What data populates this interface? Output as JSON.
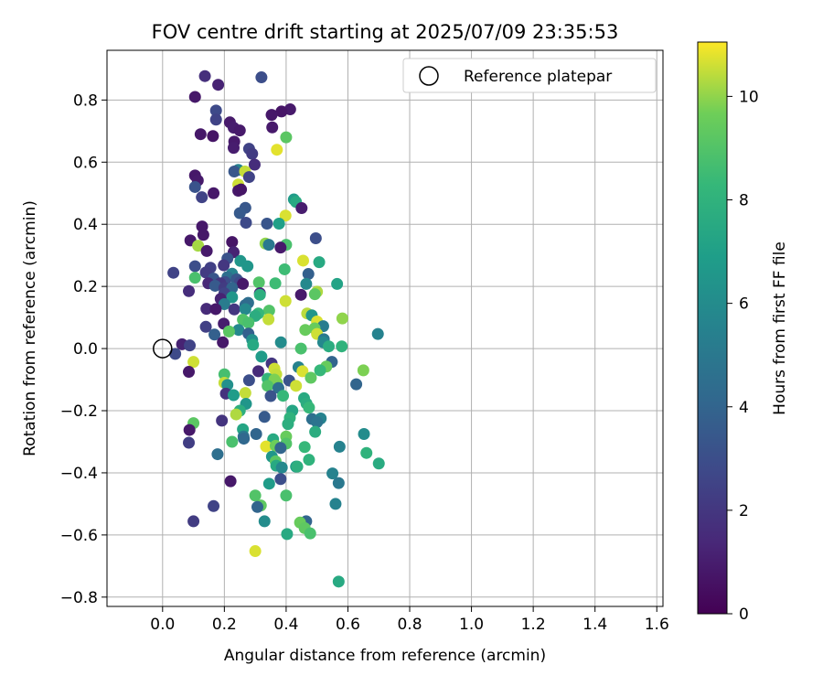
{
  "chart_data": {
    "type": "scatter",
    "title": "FOV centre drift starting at 2025/07/09 23:35:53",
    "xlabel": "Angular distance from reference (arcmin)",
    "ylabel": "Rotation from reference (arcmin)",
    "xlim": [
      -0.18,
      1.62
    ],
    "ylim": [
      -0.83,
      0.96
    ],
    "xticks": [
      0.0,
      0.2,
      0.4,
      0.6,
      0.8,
      1.0,
      1.2,
      1.4,
      1.6
    ],
    "xtick_labels": [
      "0.0",
      "0.2",
      "0.4",
      "0.6",
      "0.8",
      "1.0",
      "1.2",
      "1.4",
      "1.6"
    ],
    "yticks": [
      -0.8,
      -0.6,
      -0.4,
      -0.2,
      0.0,
      0.2,
      0.4,
      0.6,
      0.8
    ],
    "ytick_labels": [
      "−0.8",
      "−0.6",
      "−0.4",
      "−0.2",
      "0.0",
      "0.2",
      "0.4",
      "0.6",
      "0.8"
    ],
    "grid": true,
    "legend": {
      "label": "Reference platepar",
      "placement": "top-right"
    },
    "reference_point": {
      "x": 0.0,
      "y": 0.0
    },
    "colorbar": {
      "label": "Hours from first FF file",
      "min": 0,
      "max": 11.05,
      "ticks": [
        0,
        2,
        4,
        6,
        8,
        10
      ],
      "tick_labels": [
        "0",
        "2",
        "4",
        "6",
        "8",
        "10"
      ],
      "colormap": "viridis"
    },
    "points": [
      {
        "x": 0.137,
        "y": 0.877,
        "t": 1.7
      },
      {
        "x": 0.32,
        "y": 0.873,
        "t": 3.0
      },
      {
        "x": 0.18,
        "y": 0.849,
        "t": 1.2
      },
      {
        "x": 0.105,
        "y": 0.81,
        "t": 0.8
      },
      {
        "x": 0.413,
        "y": 0.77,
        "t": 0.9
      },
      {
        "x": 0.385,
        "y": 0.763,
        "t": 0.7
      },
      {
        "x": 0.353,
        "y": 0.752,
        "t": 0.8
      },
      {
        "x": 0.173,
        "y": 0.766,
        "t": 2.8
      },
      {
        "x": 0.173,
        "y": 0.737,
        "t": 2.5
      },
      {
        "x": 0.218,
        "y": 0.728,
        "t": 0.9
      },
      {
        "x": 0.355,
        "y": 0.712,
        "t": 0.9
      },
      {
        "x": 0.23,
        "y": 0.711,
        "t": 1.0
      },
      {
        "x": 0.25,
        "y": 0.702,
        "t": 0.9
      },
      {
        "x": 0.123,
        "y": 0.69,
        "t": 0.8
      },
      {
        "x": 0.163,
        "y": 0.684,
        "t": 0.7
      },
      {
        "x": 0.4,
        "y": 0.68,
        "t": 9.2
      },
      {
        "x": 0.232,
        "y": 0.666,
        "t": 0.9
      },
      {
        "x": 0.23,
        "y": 0.646,
        "t": 1.0
      },
      {
        "x": 0.28,
        "y": 0.643,
        "t": 2.5
      },
      {
        "x": 0.29,
        "y": 0.627,
        "t": 2.2
      },
      {
        "x": 0.37,
        "y": 0.64,
        "t": 10.8
      },
      {
        "x": 0.298,
        "y": 0.592,
        "t": 1.6
      },
      {
        "x": 0.245,
        "y": 0.575,
        "t": 5.5
      },
      {
        "x": 0.232,
        "y": 0.57,
        "t": 3.4
      },
      {
        "x": 0.267,
        "y": 0.57,
        "t": 10.5
      },
      {
        "x": 0.105,
        "y": 0.557,
        "t": 0.8
      },
      {
        "x": 0.114,
        "y": 0.541,
        "t": 0.9
      },
      {
        "x": 0.28,
        "y": 0.552,
        "t": 2.5
      },
      {
        "x": 0.105,
        "y": 0.52,
        "t": 3.2
      },
      {
        "x": 0.245,
        "y": 0.528,
        "t": 10.6
      },
      {
        "x": 0.245,
        "y": 0.508,
        "t": 0.8
      },
      {
        "x": 0.165,
        "y": 0.5,
        "t": 0.8
      },
      {
        "x": 0.254,
        "y": 0.512,
        "t": 0.7
      },
      {
        "x": 0.127,
        "y": 0.487,
        "t": 2.5
      },
      {
        "x": 0.425,
        "y": 0.48,
        "t": 6.8
      },
      {
        "x": 0.432,
        "y": 0.472,
        "t": 7.5
      },
      {
        "x": 0.45,
        "y": 0.452,
        "t": 1.0
      },
      {
        "x": 0.268,
        "y": 0.453,
        "t": 3.4
      },
      {
        "x": 0.25,
        "y": 0.436,
        "t": 3.5
      },
      {
        "x": 0.398,
        "y": 0.428,
        "t": 10.7
      },
      {
        "x": 0.27,
        "y": 0.405,
        "t": 2.8
      },
      {
        "x": 0.338,
        "y": 0.402,
        "t": 3.3
      },
      {
        "x": 0.377,
        "y": 0.402,
        "t": 7.0
      },
      {
        "x": 0.128,
        "y": 0.393,
        "t": 0.8
      },
      {
        "x": 0.132,
        "y": 0.366,
        "t": 0.8
      },
      {
        "x": 0.496,
        "y": 0.355,
        "t": 3.0
      },
      {
        "x": 0.09,
        "y": 0.348,
        "t": 0.8
      },
      {
        "x": 0.225,
        "y": 0.343,
        "t": 0.7
      },
      {
        "x": 0.333,
        "y": 0.338,
        "t": 10.0
      },
      {
        "x": 0.4,
        "y": 0.334,
        "t": 8.8
      },
      {
        "x": 0.382,
        "y": 0.325,
        "t": 0.9
      },
      {
        "x": 0.344,
        "y": 0.334,
        "t": 5.0
      },
      {
        "x": 0.115,
        "y": 0.331,
        "t": 10.2
      },
      {
        "x": 0.143,
        "y": 0.314,
        "t": 0.9
      },
      {
        "x": 0.23,
        "y": 0.31,
        "t": 1.2
      },
      {
        "x": 0.455,
        "y": 0.283,
        "t": 10.7
      },
      {
        "x": 0.21,
        "y": 0.29,
        "t": 3.2
      },
      {
        "x": 0.252,
        "y": 0.282,
        "t": 6.5
      },
      {
        "x": 0.507,
        "y": 0.278,
        "t": 7.5
      },
      {
        "x": 0.198,
        "y": 0.268,
        "t": 2.0
      },
      {
        "x": 0.105,
        "y": 0.265,
        "t": 3.0
      },
      {
        "x": 0.395,
        "y": 0.255,
        "t": 8.5
      },
      {
        "x": 0.275,
        "y": 0.265,
        "t": 6.5
      },
      {
        "x": 0.155,
        "y": 0.26,
        "t": 2.4
      },
      {
        "x": 0.035,
        "y": 0.244,
        "t": 2.5
      },
      {
        "x": 0.14,
        "y": 0.245,
        "t": 2.2
      },
      {
        "x": 0.225,
        "y": 0.241,
        "t": 5.5
      },
      {
        "x": 0.472,
        "y": 0.24,
        "t": 3.8
      },
      {
        "x": 0.21,
        "y": 0.23,
        "t": 4.5
      },
      {
        "x": 0.165,
        "y": 0.225,
        "t": 3.3
      },
      {
        "x": 0.105,
        "y": 0.228,
        "t": 8.8
      },
      {
        "x": 0.24,
        "y": 0.223,
        "t": 3.4
      },
      {
        "x": 0.202,
        "y": 0.214,
        "t": 3.0
      },
      {
        "x": 0.25,
        "y": 0.213,
        "t": 2.8
      },
      {
        "x": 0.148,
        "y": 0.21,
        "t": 1.4
      },
      {
        "x": 0.187,
        "y": 0.21,
        "t": 2.0
      },
      {
        "x": 0.312,
        "y": 0.213,
        "t": 9.0
      },
      {
        "x": 0.365,
        "y": 0.21,
        "t": 8.5
      },
      {
        "x": 0.17,
        "y": 0.202,
        "t": 3.5
      },
      {
        "x": 0.26,
        "y": 0.208,
        "t": 0.8
      },
      {
        "x": 0.565,
        "y": 0.208,
        "t": 7.2
      },
      {
        "x": 0.465,
        "y": 0.208,
        "t": 5.8
      },
      {
        "x": 0.2,
        "y": 0.195,
        "t": 2.2
      },
      {
        "x": 0.225,
        "y": 0.195,
        "t": 4.0
      },
      {
        "x": 0.085,
        "y": 0.185,
        "t": 1.6
      },
      {
        "x": 0.5,
        "y": 0.183,
        "t": 10.3
      },
      {
        "x": 0.2,
        "y": 0.178,
        "t": 2.5
      },
      {
        "x": 0.315,
        "y": 0.178,
        "t": 1.5
      },
      {
        "x": 0.493,
        "y": 0.175,
        "t": 9.2
      },
      {
        "x": 0.315,
        "y": 0.173,
        "t": 7.8
      },
      {
        "x": 0.448,
        "y": 0.173,
        "t": 0.9
      },
      {
        "x": 0.225,
        "y": 0.165,
        "t": 6.5
      },
      {
        "x": 0.188,
        "y": 0.16,
        "t": 1.2
      },
      {
        "x": 0.398,
        "y": 0.153,
        "t": 10.6
      },
      {
        "x": 0.2,
        "y": 0.143,
        "t": 5.2
      },
      {
        "x": 0.277,
        "y": 0.147,
        "t": 4.5
      },
      {
        "x": 0.268,
        "y": 0.14,
        "t": 4.3
      },
      {
        "x": 0.142,
        "y": 0.128,
        "t": 1.5
      },
      {
        "x": 0.232,
        "y": 0.126,
        "t": 2.0
      },
      {
        "x": 0.268,
        "y": 0.127,
        "t": 5.8
      },
      {
        "x": 0.172,
        "y": 0.127,
        "t": 0.8
      },
      {
        "x": 0.345,
        "y": 0.122,
        "t": 9.0
      },
      {
        "x": 0.31,
        "y": 0.113,
        "t": 8.3
      },
      {
        "x": 0.468,
        "y": 0.113,
        "t": 10.4
      },
      {
        "x": 0.483,
        "y": 0.107,
        "t": 6.5
      },
      {
        "x": 0.3,
        "y": 0.105,
        "t": 7.7
      },
      {
        "x": 0.343,
        "y": 0.094,
        "t": 10.5
      },
      {
        "x": 0.5,
        "y": 0.087,
        "t": 10.7
      },
      {
        "x": 0.582,
        "y": 0.097,
        "t": 10.0
      },
      {
        "x": 0.26,
        "y": 0.093,
        "t": 9.0
      },
      {
        "x": 0.278,
        "y": 0.083,
        "t": 8.8
      },
      {
        "x": 0.198,
        "y": 0.08,
        "t": 1.0
      },
      {
        "x": 0.14,
        "y": 0.07,
        "t": 2.4
      },
      {
        "x": 0.52,
        "y": 0.072,
        "t": 5.2
      },
      {
        "x": 0.492,
        "y": 0.065,
        "t": 9.5
      },
      {
        "x": 0.246,
        "y": 0.06,
        "t": 5.8
      },
      {
        "x": 0.462,
        "y": 0.06,
        "t": 9.5
      },
      {
        "x": 0.215,
        "y": 0.055,
        "t": 9.2
      },
      {
        "x": 0.278,
        "y": 0.048,
        "t": 3.8
      },
      {
        "x": 0.5,
        "y": 0.047,
        "t": 10.6
      },
      {
        "x": 0.697,
        "y": 0.047,
        "t": 5.5
      },
      {
        "x": 0.168,
        "y": 0.045,
        "t": 3.8
      },
      {
        "x": 0.522,
        "y": 0.03,
        "t": 5.0
      },
      {
        "x": 0.29,
        "y": 0.028,
        "t": 6.2
      },
      {
        "x": 0.383,
        "y": 0.02,
        "t": 6.0
      },
      {
        "x": 0.195,
        "y": 0.02,
        "t": 0.8
      },
      {
        "x": 0.52,
        "y": 0.02,
        "t": 5.8
      },
      {
        "x": 0.063,
        "y": 0.014,
        "t": 1.2
      },
      {
        "x": 0.088,
        "y": 0.01,
        "t": 2.5
      },
      {
        "x": 0.293,
        "y": 0.012,
        "t": 7.5
      },
      {
        "x": 0.538,
        "y": 0.007,
        "t": 7.7
      },
      {
        "x": 0.58,
        "y": 0.007,
        "t": 8.0
      },
      {
        "x": 0.448,
        "y": 0.0,
        "t": 8.8
      },
      {
        "x": 0.041,
        "y": -0.017,
        "t": 2.8
      },
      {
        "x": 0.32,
        "y": -0.026,
        "t": 6.8
      },
      {
        "x": 0.1,
        "y": -0.043,
        "t": 10.6
      },
      {
        "x": 0.548,
        "y": -0.043,
        "t": 4.0
      },
      {
        "x": 0.353,
        "y": -0.048,
        "t": 2.0
      },
      {
        "x": 0.53,
        "y": -0.058,
        "t": 9.5
      },
      {
        "x": 0.44,
        "y": -0.06,
        "t": 5.5
      },
      {
        "x": 0.362,
        "y": -0.065,
        "t": 10.6
      },
      {
        "x": 0.65,
        "y": -0.07,
        "t": 9.8
      },
      {
        "x": 0.31,
        "y": -0.073,
        "t": 1.5
      },
      {
        "x": 0.453,
        "y": -0.073,
        "t": 10.7
      },
      {
        "x": 0.085,
        "y": -0.075,
        "t": 0.8
      },
      {
        "x": 0.51,
        "y": -0.07,
        "t": 8.3
      },
      {
        "x": 0.2,
        "y": -0.083,
        "t": 8.7
      },
      {
        "x": 0.368,
        "y": -0.083,
        "t": 10.5
      },
      {
        "x": 0.34,
        "y": -0.097,
        "t": 8.2
      },
      {
        "x": 0.48,
        "y": -0.094,
        "t": 9.3
      },
      {
        "x": 0.362,
        "y": -0.1,
        "t": 9.8
      },
      {
        "x": 0.28,
        "y": -0.102,
        "t": 3.0
      },
      {
        "x": 0.41,
        "y": -0.103,
        "t": 3.2
      },
      {
        "x": 0.2,
        "y": -0.11,
        "t": 10.5
      },
      {
        "x": 0.37,
        "y": -0.11,
        "t": 9.8
      },
      {
        "x": 0.21,
        "y": -0.117,
        "t": 6.2
      },
      {
        "x": 0.627,
        "y": -0.115,
        "t": 4.0
      },
      {
        "x": 0.34,
        "y": -0.12,
        "t": 9.0
      },
      {
        "x": 0.432,
        "y": -0.12,
        "t": 10.6
      },
      {
        "x": 0.375,
        "y": -0.127,
        "t": 4.5
      },
      {
        "x": 0.205,
        "y": -0.145,
        "t": 1.8
      },
      {
        "x": 0.268,
        "y": -0.143,
        "t": 10.5
      },
      {
        "x": 0.23,
        "y": -0.15,
        "t": 6.8
      },
      {
        "x": 0.39,
        "y": -0.152,
        "t": 8.3
      },
      {
        "x": 0.35,
        "y": -0.153,
        "t": 3.2
      },
      {
        "x": 0.458,
        "y": -0.16,
        "t": 7.5
      },
      {
        "x": 0.27,
        "y": -0.178,
        "t": 6.5
      },
      {
        "x": 0.466,
        "y": -0.177,
        "t": 7.7
      },
      {
        "x": 0.474,
        "y": -0.19,
        "t": 8.3
      },
      {
        "x": 0.42,
        "y": -0.2,
        "t": 7.3
      },
      {
        "x": 0.25,
        "y": -0.2,
        "t": 7.8
      },
      {
        "x": 0.238,
        "y": -0.212,
        "t": 10.3
      },
      {
        "x": 0.33,
        "y": -0.22,
        "t": 3.5
      },
      {
        "x": 0.412,
        "y": -0.223,
        "t": 8.0
      },
      {
        "x": 0.484,
        "y": -0.227,
        "t": 4.5
      },
      {
        "x": 0.512,
        "y": -0.225,
        "t": 5.5
      },
      {
        "x": 0.192,
        "y": -0.232,
        "t": 1.9
      },
      {
        "x": 0.1,
        "y": -0.24,
        "t": 9.2
      },
      {
        "x": 0.406,
        "y": -0.243,
        "t": 7.8
      },
      {
        "x": 0.5,
        "y": -0.237,
        "t": 4.8
      },
      {
        "x": 0.087,
        "y": -0.262,
        "t": 0.8
      },
      {
        "x": 0.26,
        "y": -0.26,
        "t": 7.3
      },
      {
        "x": 0.494,
        "y": -0.268,
        "t": 7.7
      },
      {
        "x": 0.303,
        "y": -0.275,
        "t": 4.0
      },
      {
        "x": 0.652,
        "y": -0.275,
        "t": 6.0
      },
      {
        "x": 0.262,
        "y": -0.283,
        "t": 5.0
      },
      {
        "x": 0.4,
        "y": -0.283,
        "t": 9.5
      },
      {
        "x": 0.263,
        "y": -0.29,
        "t": 4.2
      },
      {
        "x": 0.358,
        "y": -0.292,
        "t": 7.5
      },
      {
        "x": 0.225,
        "y": -0.3,
        "t": 8.8
      },
      {
        "x": 0.085,
        "y": -0.303,
        "t": 2.3
      },
      {
        "x": 0.4,
        "y": -0.306,
        "t": 9.0
      },
      {
        "x": 0.335,
        "y": -0.315,
        "t": 10.8
      },
      {
        "x": 0.366,
        "y": -0.313,
        "t": 9.6
      },
      {
        "x": 0.573,
        "y": -0.316,
        "t": 5.5
      },
      {
        "x": 0.46,
        "y": -0.317,
        "t": 8.3
      },
      {
        "x": 0.382,
        "y": -0.32,
        "t": 4.0
      },
      {
        "x": 0.66,
        "y": -0.336,
        "t": 8.0
      },
      {
        "x": 0.178,
        "y": -0.34,
        "t": 4.5
      },
      {
        "x": 0.354,
        "y": -0.348,
        "t": 6.5
      },
      {
        "x": 0.474,
        "y": -0.358,
        "t": 8.0
      },
      {
        "x": 0.366,
        "y": -0.363,
        "t": 9.2
      },
      {
        "x": 0.7,
        "y": -0.37,
        "t": 7.6
      },
      {
        "x": 0.368,
        "y": -0.377,
        "t": 7.5
      },
      {
        "x": 0.432,
        "y": -0.38,
        "t": 6.8
      },
      {
        "x": 0.386,
        "y": -0.383,
        "t": 5.8
      },
      {
        "x": 0.436,
        "y": -0.38,
        "t": 7.8
      },
      {
        "x": 0.55,
        "y": -0.402,
        "t": 5.5
      },
      {
        "x": 0.382,
        "y": -0.42,
        "t": 3.0
      },
      {
        "x": 0.22,
        "y": -0.427,
        "t": 0.8
      },
      {
        "x": 0.57,
        "y": -0.433,
        "t": 5.0
      },
      {
        "x": 0.345,
        "y": -0.435,
        "t": 6.8
      },
      {
        "x": 0.3,
        "y": -0.473,
        "t": 9.0
      },
      {
        "x": 0.4,
        "y": -0.473,
        "t": 8.8
      },
      {
        "x": 0.56,
        "y": -0.5,
        "t": 5.5
      },
      {
        "x": 0.318,
        "y": -0.505,
        "t": 9.3
      },
      {
        "x": 0.307,
        "y": -0.51,
        "t": 4.0
      },
      {
        "x": 0.165,
        "y": -0.507,
        "t": 2.5
      },
      {
        "x": 0.1,
        "y": -0.556,
        "t": 2.2
      },
      {
        "x": 0.33,
        "y": -0.556,
        "t": 6.0
      },
      {
        "x": 0.465,
        "y": -0.556,
        "t": 4.0
      },
      {
        "x": 0.445,
        "y": -0.56,
        "t": 9.5
      },
      {
        "x": 0.46,
        "y": -0.578,
        "t": 9.3
      },
      {
        "x": 0.478,
        "y": -0.595,
        "t": 8.8
      },
      {
        "x": 0.403,
        "y": -0.597,
        "t": 7.5
      },
      {
        "x": 0.3,
        "y": -0.652,
        "t": 10.7
      },
      {
        "x": 0.57,
        "y": -0.75,
        "t": 7.5
      }
    ]
  }
}
